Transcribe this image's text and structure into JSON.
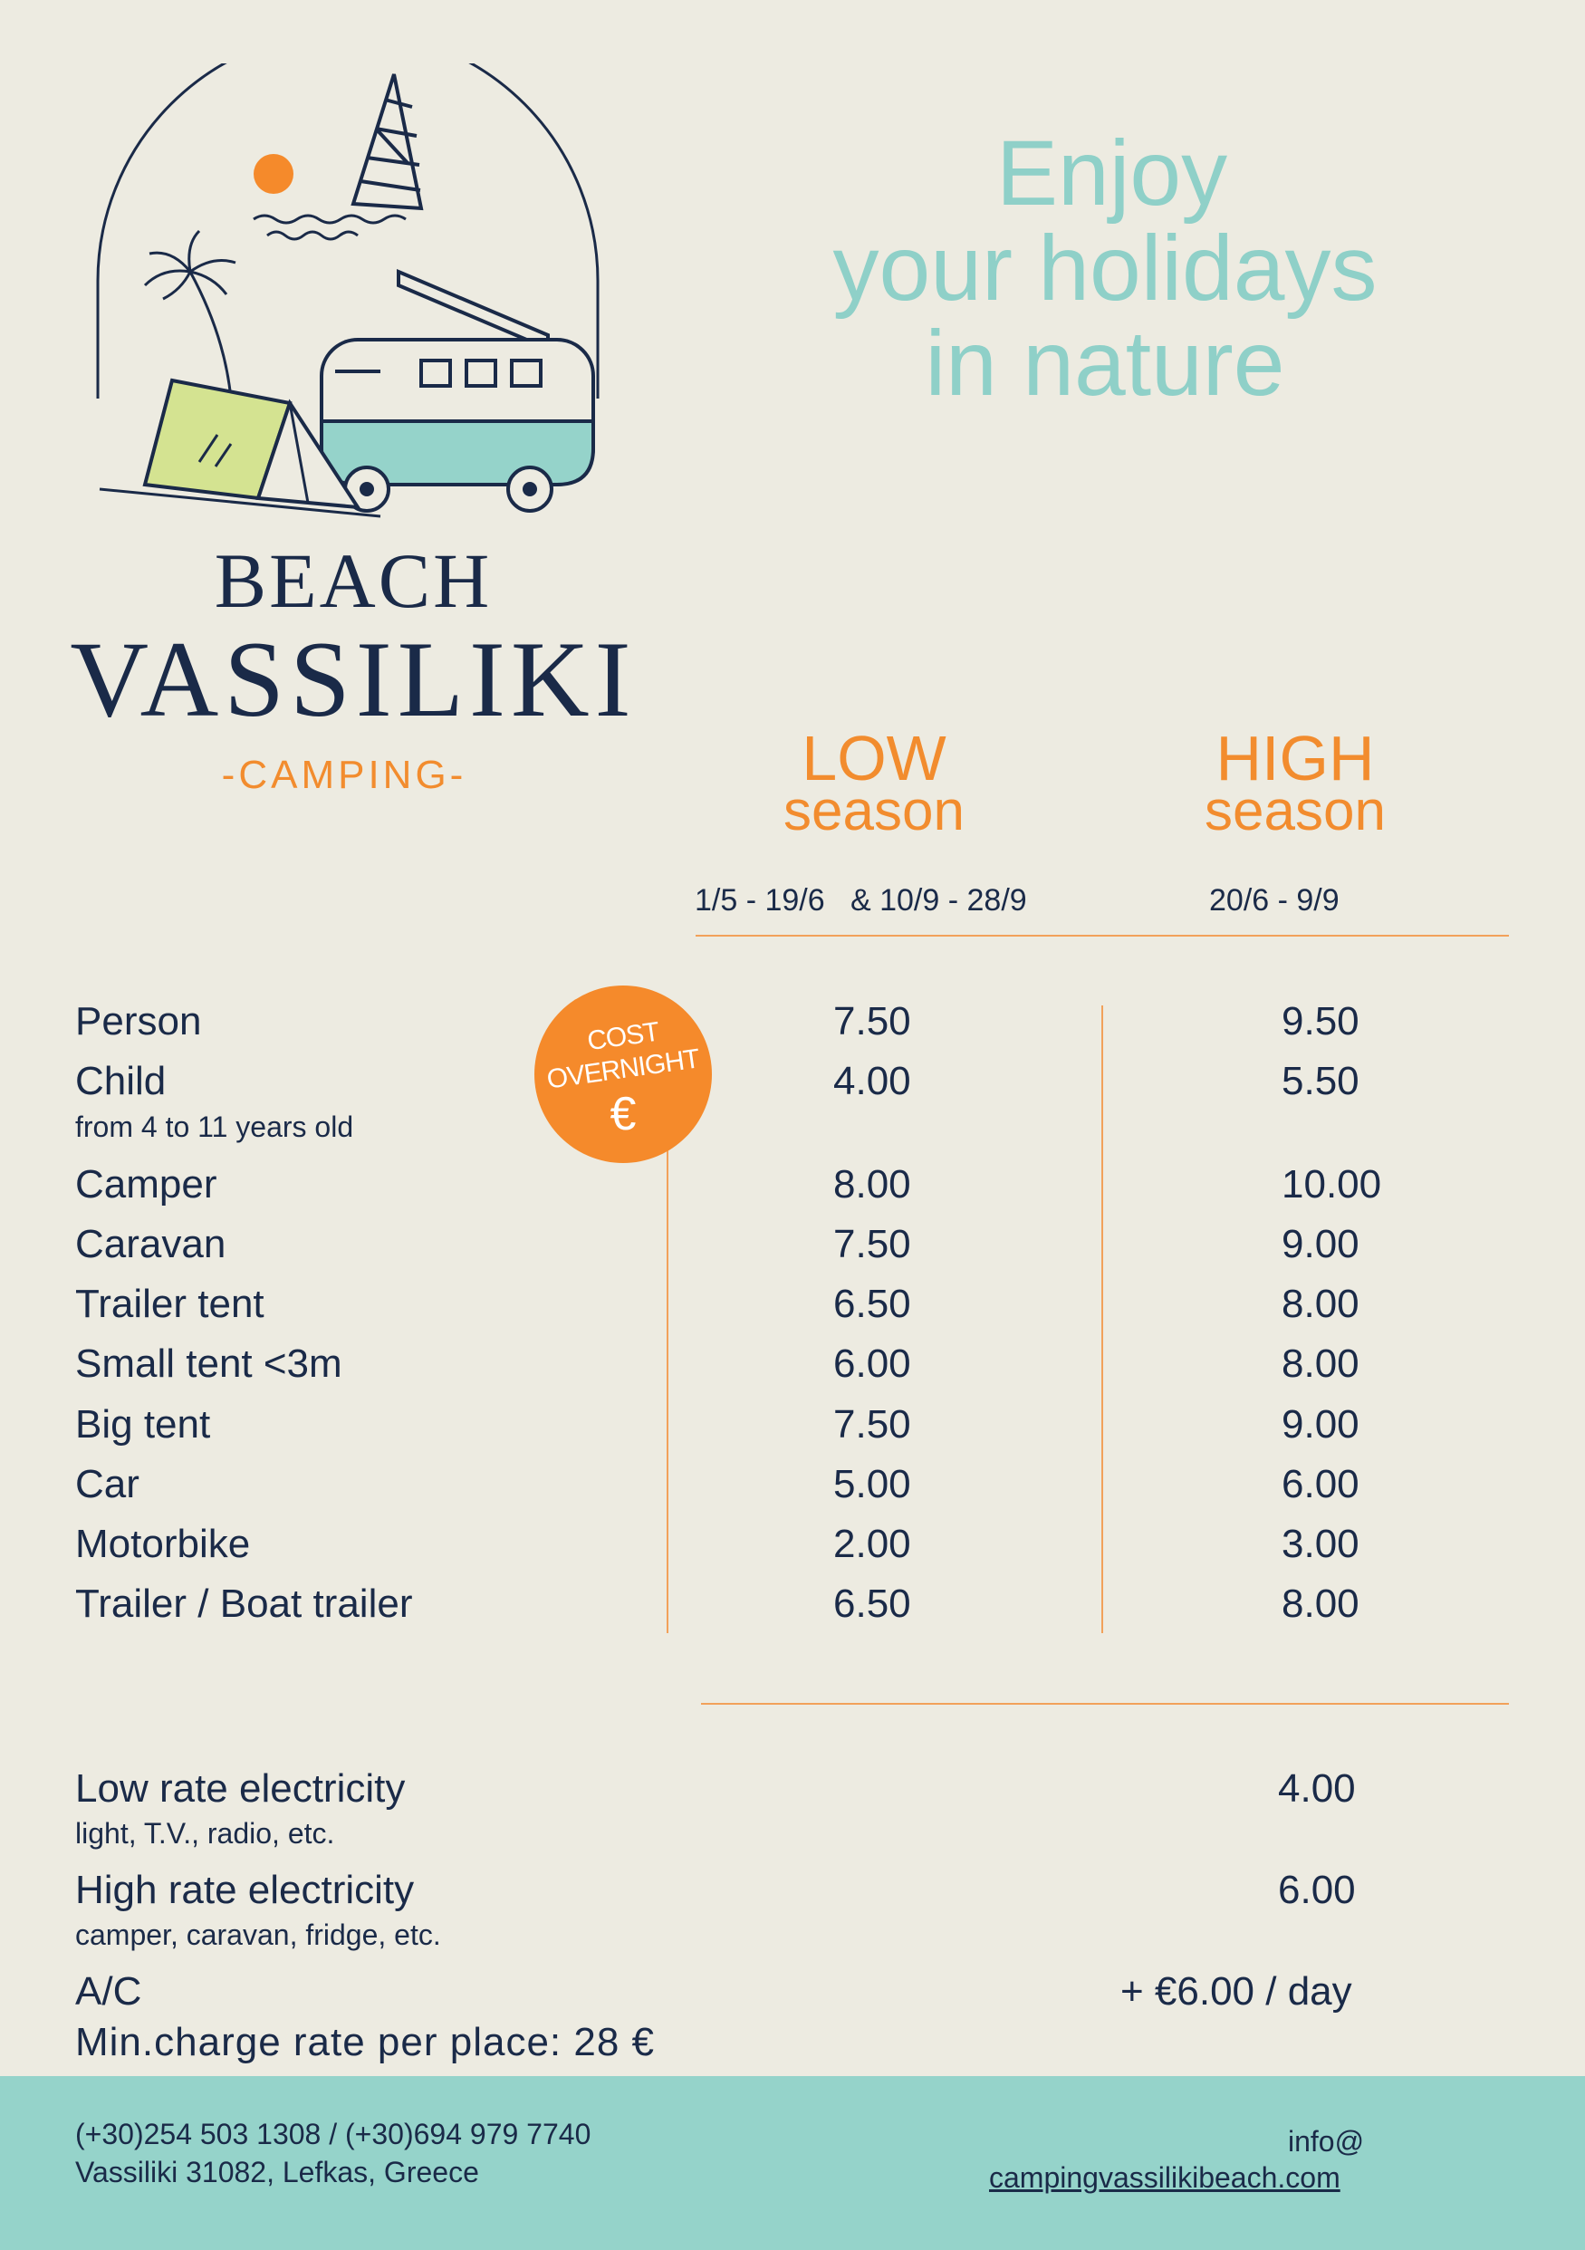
{
  "brand": {
    "line1": "BEACH",
    "line2": "VASSILIKI",
    "line3": "-CAMPING-"
  },
  "tagline": {
    "line1": "Enjoy",
    "line2": "your  holidays",
    "line3": "in nature"
  },
  "seasons": {
    "low": {
      "title": "LOW",
      "subtitle": "season",
      "dates": "1/5 - 19/6   & 10/9 - 28/9"
    },
    "high": {
      "title": "HIGH",
      "subtitle": "season",
      "dates": "20/6 - 9/9"
    }
  },
  "badge": {
    "line1": "COST",
    "line2": "OVERNIGHT",
    "symbol": "€"
  },
  "rates": [
    {
      "label": "Person",
      "low": "7.50",
      "high": "9.50"
    },
    {
      "label": "Child",
      "sublabel": "from 4 to  11 years old",
      "low": "4.00",
      "high": "5.50"
    },
    {
      "label": "Camper",
      "low": "8.00",
      "high": "10.00"
    },
    {
      "label": "Caravan",
      "low": "7.50",
      "high": "9.00"
    },
    {
      "label": "Trailer tent",
      "low": "6.50",
      "high": "8.00"
    },
    {
      "label": "Small tent <3m",
      "low": "6.00",
      "high": "8.00"
    },
    {
      "label": "Big tent",
      "low": "7.50",
      "high": "9.00"
    },
    {
      "label": "Car",
      "low": "5.00",
      "high": "6.00"
    },
    {
      "label": "Motorbike",
      "low": "2.00",
      "high": "3.00"
    },
    {
      "label": "Trailer / Boat trailer",
      "low": "6.50",
      "high": "8.00"
    }
  ],
  "extras": [
    {
      "label": "Low rate electricity",
      "sublabel": "light, T.V., radio, etc.",
      "value": "4.00"
    },
    {
      "label": "High rate electricity",
      "sublabel": "camper, caravan, fridge, etc.",
      "value": "6.00"
    },
    {
      "label": "A/C",
      "value": "+ €6.00 / day"
    }
  ],
  "min_charge": "Min.charge rate per place: 28 €",
  "footer": {
    "phones": "(+30)254 503 1308  / (+30)694 979 7740",
    "address": "Vassiliki 31082, Lefkas, Greece",
    "email_line1": "info@",
    "email_line2": "campingvassilikibeach.com"
  },
  "colors": {
    "background": "#edebe1",
    "navy": "#1a2a48",
    "orange": "#f28c2e",
    "teal": "#8fd0c8",
    "lime": "#d4e391"
  }
}
